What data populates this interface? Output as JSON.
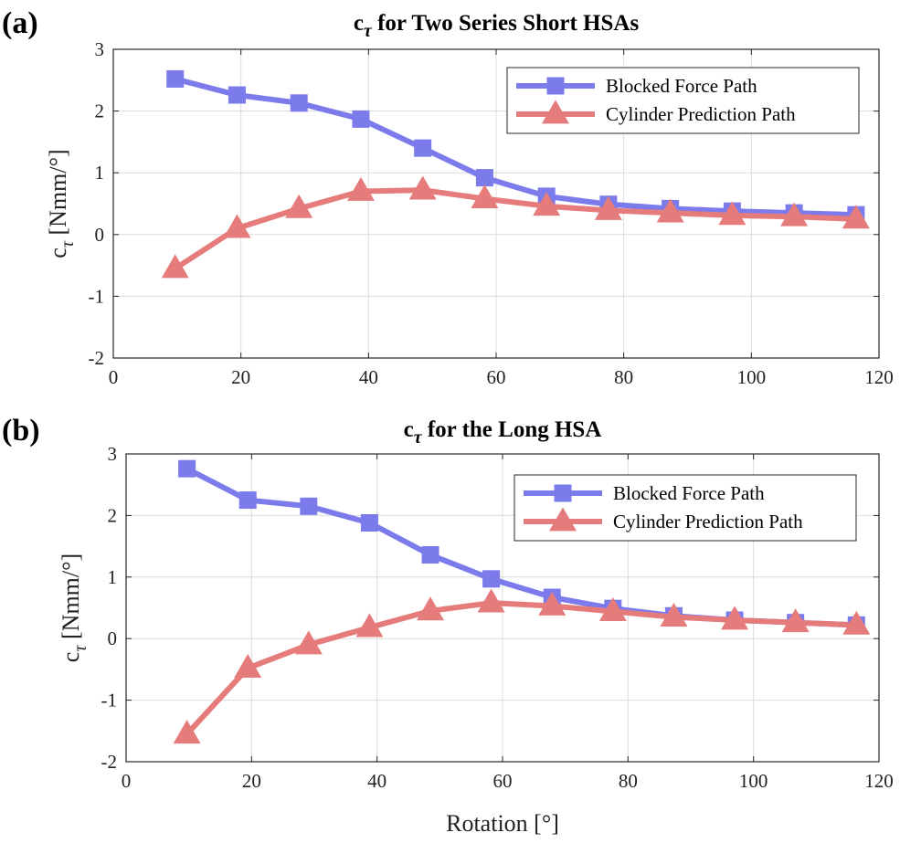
{
  "chart_data": [
    {
      "type": "line",
      "panel_label": "(a)",
      "title_prefix": "c",
      "title_sub": "τ",
      "title_rest": " for Two Series Short HSAs",
      "xlabel": "",
      "ylabel_prefix": "c",
      "ylabel_sub": "τ",
      "ylabel_rest": " [Nmm/°]",
      "xlim": [
        0,
        120
      ],
      "ylim": [
        -2,
        3
      ],
      "xticks": [
        0,
        20,
        40,
        60,
        80,
        100,
        120
      ],
      "yticks": [
        -2,
        -1,
        0,
        1,
        2,
        3
      ],
      "grid": true,
      "legend_position": "top-right",
      "series": [
        {
          "name": "Blocked Force Path",
          "color": "#7b7bec",
          "marker": "square",
          "x": [
            9.7,
            19.4,
            29.1,
            38.8,
            48.5,
            58.2,
            67.9,
            77.6,
            87.3,
            97,
            106.7,
            116.4
          ],
          "y": [
            2.52,
            2.26,
            2.13,
            1.87,
            1.4,
            0.92,
            0.62,
            0.49,
            0.42,
            0.38,
            0.35,
            0.32
          ]
        },
        {
          "name": "Cylinder Prediction Path",
          "color": "#e67b7b",
          "marker": "triangle",
          "x": [
            9.7,
            19.4,
            29.1,
            38.8,
            48.5,
            58.2,
            67.9,
            77.6,
            87.3,
            97,
            106.7,
            116.4
          ],
          "y": [
            -0.55,
            0.1,
            0.42,
            0.7,
            0.72,
            0.58,
            0.46,
            0.39,
            0.35,
            0.31,
            0.29,
            0.25
          ]
        }
      ]
    },
    {
      "type": "line",
      "panel_label": "(b)",
      "title_prefix": "c",
      "title_sub": "τ",
      "title_rest": " for the Long HSA",
      "xlabel": "Rotation [°]",
      "ylabel_prefix": "c",
      "ylabel_sub": "τ",
      "ylabel_rest": " [Nmm/°]",
      "xlim": [
        0,
        120
      ],
      "ylim": [
        -2,
        3
      ],
      "xticks": [
        0,
        20,
        40,
        60,
        80,
        100,
        120
      ],
      "yticks": [
        -2,
        -1,
        0,
        1,
        2,
        3
      ],
      "grid": true,
      "legend_position": "top-right",
      "series": [
        {
          "name": "Blocked Force Path",
          "color": "#7b7bec",
          "marker": "square",
          "x": [
            9.7,
            19.4,
            29.1,
            38.8,
            48.5,
            58.2,
            67.9,
            77.6,
            87.3,
            97,
            106.7,
            116.4
          ],
          "y": [
            2.76,
            2.25,
            2.15,
            1.88,
            1.36,
            0.97,
            0.67,
            0.49,
            0.37,
            0.3,
            0.26,
            0.22
          ]
        },
        {
          "name": "Cylinder Prediction Path",
          "color": "#e67b7b",
          "marker": "triangle",
          "x": [
            9.7,
            19.4,
            29.1,
            38.8,
            48.5,
            58.2,
            67.9,
            77.6,
            87.3,
            97,
            106.7,
            116.4
          ],
          "y": [
            -1.55,
            -0.48,
            -0.1,
            0.18,
            0.45,
            0.58,
            0.53,
            0.44,
            0.35,
            0.3,
            0.26,
            0.22
          ]
        }
      ]
    }
  ]
}
